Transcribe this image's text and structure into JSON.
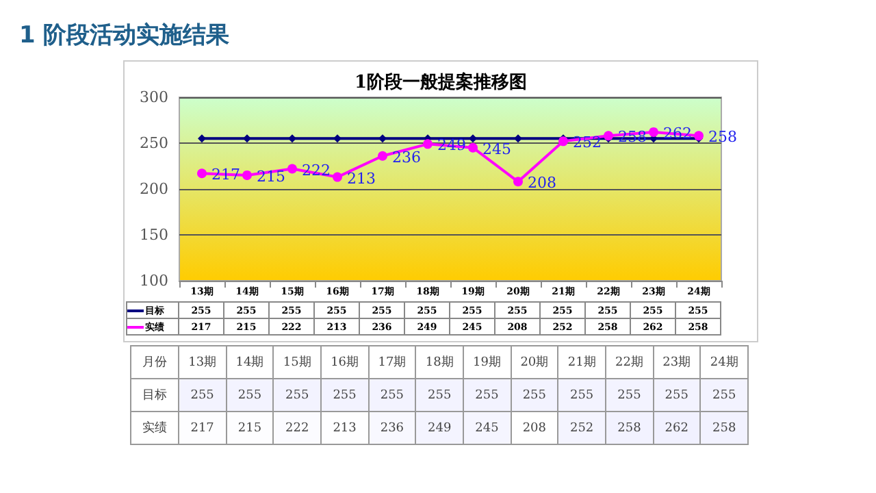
{
  "chart_data": [
    {
      "type": "line",
      "title": "1阶段一般提案推移图",
      "subtitle": "1 阶段活动实施结果",
      "categories": [
        "13期",
        "14期",
        "15期",
        "16期",
        "17期",
        "18期",
        "19期",
        "20期",
        "21期",
        "22期",
        "23期",
        "24期"
      ],
      "series": [
        {
          "name": "目标",
          "color": "#000080",
          "marker": "diamond",
          "values": [
            255,
            255,
            255,
            255,
            255,
            255,
            255,
            255,
            255,
            255,
            255,
            255
          ]
        },
        {
          "name": "实绩",
          "color": "#ff00ff",
          "marker": "circle",
          "values": [
            217,
            215,
            222,
            213,
            236,
            249,
            245,
            208,
            252,
            258,
            262,
            258
          ]
        }
      ],
      "annotations": [
        {
          "text": "217",
          "x": "13期",
          "y": 217
        },
        {
          "text": "215",
          "x": "14期",
          "y": 215
        },
        {
          "text": "222",
          "x": "15期",
          "y": 222
        },
        {
          "text": "213",
          "x": "16期",
          "y": 213
        },
        {
          "text": "236",
          "x": "17期",
          "y": 236
        },
        {
          "text": "249",
          "x": "18期",
          "y": 249
        },
        {
          "text": "245",
          "x": "19期",
          "y": 245
        },
        {
          "text": "208",
          "x": "20期",
          "y": 208
        },
        {
          "text": "252",
          "x": "21期",
          "y": 252
        },
        {
          "text": "258",
          "x": "22期",
          "y": 258
        },
        {
          "text": "262",
          "x": "23期",
          "y": 262
        },
        {
          "text": "258",
          "x": "24期",
          "y": 258
        }
      ],
      "ylim": [
        100,
        300
      ],
      "yticks": [
        100,
        150,
        200,
        250,
        300
      ],
      "grid": "y",
      "legend": "bottom",
      "data_labels": true
    },
    {
      "type": "heatmap",
      "xlabel": "月份",
      "categories": [
        "13期",
        "14期",
        "15期",
        "16期",
        "17期",
        "18期",
        "19期",
        "20期",
        "21期",
        "22期",
        "23期",
        "24期"
      ],
      "y_categories": [
        "目标",
        "实绩"
      ],
      "cells": [
        [
          255,
          255,
          255,
          255,
          255,
          255,
          255,
          255,
          255,
          255,
          255,
          255
        ],
        [
          217,
          215,
          222,
          213,
          236,
          249,
          245,
          208,
          252,
          258,
          262,
          258
        ]
      ],
      "cell_labels": [
        [
          "255",
          "255",
          "255",
          "255",
          "255",
          "255",
          "255",
          "255",
          "255",
          "255",
          "255",
          "255"
        ],
        [
          "217",
          "215",
          "222",
          "213",
          "236",
          "249",
          "245",
          "208",
          "252",
          "258",
          "262",
          "258"
        ]
      ]
    }
  ]
}
